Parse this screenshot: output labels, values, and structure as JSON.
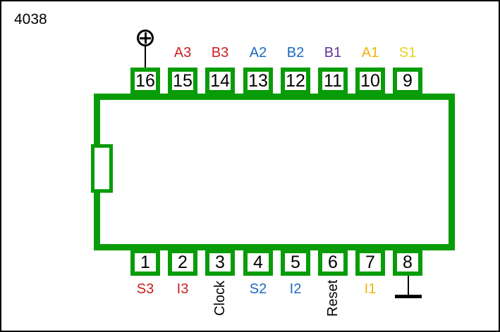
{
  "title": "4038",
  "colors": {
    "ic_green": "#089C08",
    "red": "#C82020",
    "blue": "#1B6AC0",
    "purple": "#663399",
    "gold": "#EFB410",
    "yellow": "#E8D024",
    "black": "#000000"
  },
  "chip": {
    "top_pins": [
      {
        "number": "16",
        "label": "",
        "label_color": "black",
        "symbol": "power"
      },
      {
        "number": "15",
        "label": "A3",
        "label_color": "red"
      },
      {
        "number": "14",
        "label": "B3",
        "label_color": "red"
      },
      {
        "number": "13",
        "label": "A2",
        "label_color": "blue"
      },
      {
        "number": "12",
        "label": "B2",
        "label_color": "blue"
      },
      {
        "number": "11",
        "label": "B1",
        "label_color": "purple"
      },
      {
        "number": "10",
        "label": "A1",
        "label_color": "gold"
      },
      {
        "number": "9",
        "label": "S1",
        "label_color": "yellow"
      }
    ],
    "bottom_pins": [
      {
        "number": "1",
        "label": "S3",
        "label_color": "red"
      },
      {
        "number": "2",
        "label": "I3",
        "label_color": "red"
      },
      {
        "number": "3",
        "label": "Clock",
        "label_color": "black",
        "rotated": true
      },
      {
        "number": "4",
        "label": "S2",
        "label_color": "blue"
      },
      {
        "number": "5",
        "label": "I2",
        "label_color": "blue"
      },
      {
        "number": "6",
        "label": "Reset",
        "label_color": "black",
        "rotated": true
      },
      {
        "number": "7",
        "label": "I1",
        "label_color": "gold"
      },
      {
        "number": "8",
        "label": "",
        "label_color": "black",
        "symbol": "ground"
      }
    ]
  },
  "icons": {
    "power": "plus-circle-icon",
    "ground": "ground-bar-icon"
  }
}
